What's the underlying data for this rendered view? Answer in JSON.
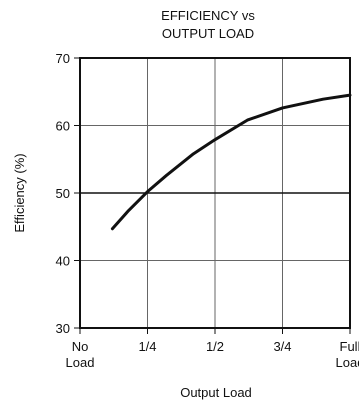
{
  "chart_data": {
    "type": "line",
    "title_line1": "EFFICIENCY vs",
    "title_line2": "OUTPUT LOAD",
    "xlabel": "Output Load",
    "ylabel": "Efficiency (%)",
    "ylim": [
      30,
      70
    ],
    "yticks": [
      30,
      40,
      50,
      60,
      70
    ],
    "xlim": [
      0,
      1
    ],
    "xticks": [
      {
        "value": 0,
        "line1": "No",
        "line2": "Load"
      },
      {
        "value": 0.25,
        "line1": "1/4",
        "line2": ""
      },
      {
        "value": 0.5,
        "line1": "1/2",
        "line2": ""
      },
      {
        "value": 0.75,
        "line1": "3/4",
        "line2": ""
      },
      {
        "value": 1,
        "line1": "Full",
        "line2": "Load"
      }
    ],
    "grid": true,
    "series": [
      {
        "x": [
          0.12,
          0.18,
          0.25,
          0.32,
          0.42,
          0.5,
          0.62,
          0.75,
          0.9,
          1.0
        ],
        "y": [
          44.7,
          47.4,
          50.2,
          52.6,
          55.8,
          57.9,
          60.8,
          62.6,
          63.9,
          64.5
        ]
      }
    ]
  }
}
